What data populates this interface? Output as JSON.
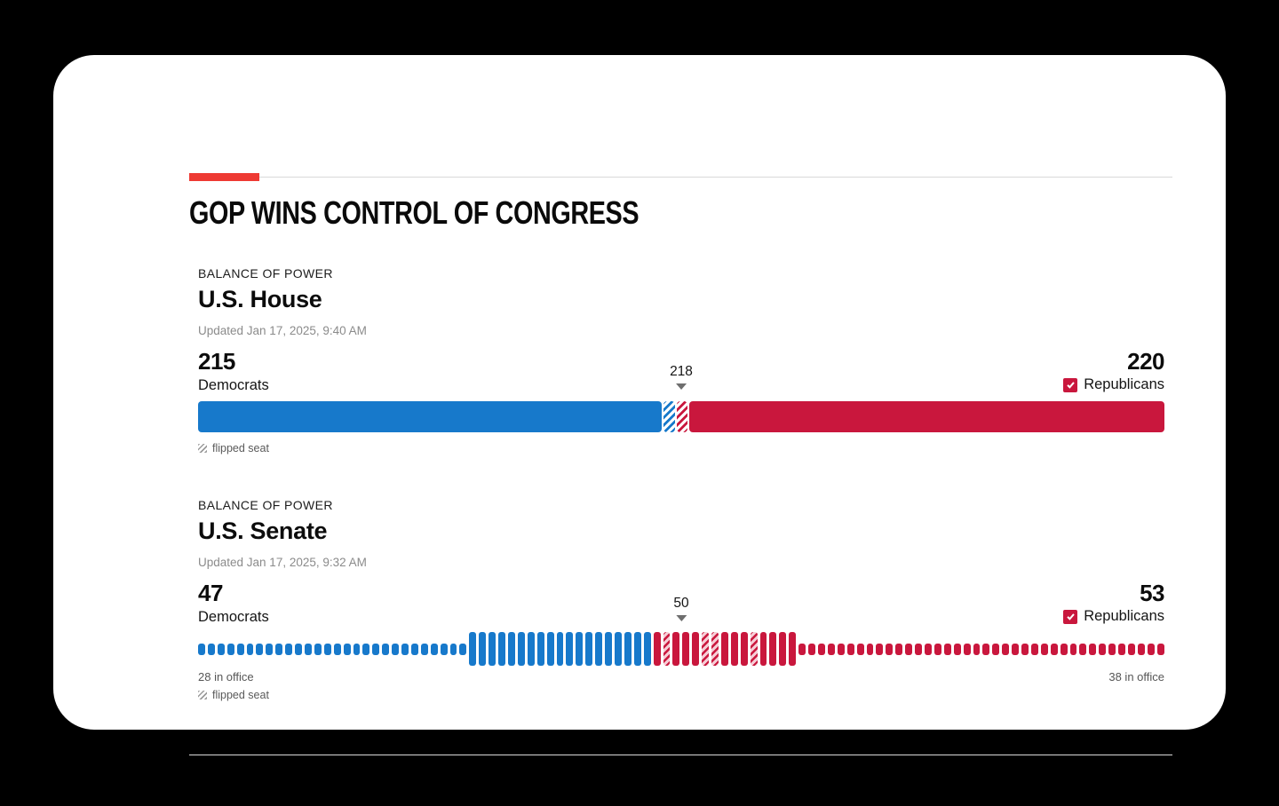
{
  "colors": {
    "accent_red": "#ee3a33",
    "republican_red": "#c9173d",
    "democrat_blue": "#1779cb",
    "background": "#000000",
    "card": "#ffffff"
  },
  "header": {
    "title": "GOP WINS CONTROL OF CONGRESS"
  },
  "house": {
    "kicker": "BALANCE OF POWER",
    "title": "U.S. House",
    "updated": "Updated Jan 17, 2025, 9:40 AM",
    "dem_count": "215",
    "dem_label": "Democrats",
    "rep_count": "220",
    "rep_label": "Republicans",
    "majority_label": "218",
    "legend_flipped": "flipped seat",
    "segments": [
      {
        "party": "dem",
        "style": "solid",
        "seats": 210
      },
      {
        "party": "dem",
        "style": "flipped",
        "seats": 5
      },
      {
        "party": "rep",
        "style": "flipped",
        "seats": 5
      },
      {
        "party": "rep",
        "style": "solid",
        "seats": 215
      }
    ]
  },
  "senate": {
    "kicker": "BALANCE OF POWER",
    "title": "U.S. Senate",
    "updated": "Updated Jan 17, 2025, 9:32 AM",
    "dem_count": "47",
    "dem_label": "Democrats",
    "rep_count": "53",
    "rep_label": "Republicans",
    "majority_label": "50",
    "left_note": "28 in office",
    "right_note": "38 in office",
    "legend_flipped": "flipped seat",
    "seat_groups": [
      {
        "party": "dem",
        "size": "short",
        "count": 28
      },
      {
        "party": "dem",
        "size": "tall",
        "count": 19
      },
      {
        "party": "rep",
        "size": "tall",
        "count": 15,
        "flipped_positions": [
          2,
          6,
          7,
          11
        ]
      },
      {
        "party": "rep",
        "size": "short",
        "count": 38
      }
    ]
  },
  "chart_data": [
    {
      "type": "bar",
      "title": "BALANCE OF POWER — U.S. House",
      "subtitle": "Updated Jan 17, 2025, 9:40 AM",
      "categories": [
        "Democrats",
        "Republicans"
      ],
      "values": [
        215,
        220
      ],
      "total_seats": 435,
      "majority_marker": 218,
      "winner": "Republicans",
      "legend_entries": [
        "flipped seat"
      ],
      "layout": "single horizontal stacked bar, Democrats from left, Republicans from right, flipped seats hatched near center, majority marker triangle at 218"
    },
    {
      "type": "bar",
      "title": "BALANCE OF POWER — U.S. Senate",
      "subtitle": "Updated Jan 17, 2025, 9:32 AM",
      "categories": [
        "Democrats",
        "Republicans"
      ],
      "values": [
        47,
        53
      ],
      "total_seats": 100,
      "majority_marker": 50,
      "winner": "Republicans",
      "democrats_in_office_not_up": 28,
      "republicans_in_office_not_up": 38,
      "republican_flipped_seats": 4,
      "legend_entries": [
        "flipped seat"
      ],
      "annotations": [
        "28 in office",
        "38 in office"
      ],
      "layout": "100 individual seat ticks; short ticks = seats not up for election (in office), tall ticks = contested seats, hatched tall red ticks = flipped seats, majority marker triangle at 50"
    }
  ]
}
